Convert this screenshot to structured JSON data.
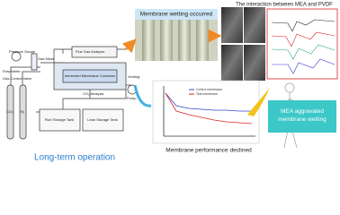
{
  "header": {
    "title": "The interaction between MEA and PVDF"
  },
  "panels": {
    "wetting": "Membrane wetting occurred",
    "performance": "Membrane performance declined",
    "conclusion": "MEA aggravated membrane wetting",
    "operation": "Long-term operation"
  },
  "schematic": {
    "pressure_gauge": "Pressure Gauge",
    "flow_meter": "Flow Meter",
    "gas_valve": "Gas Control Valve",
    "gas_mixer": "Gas Mixer",
    "flue_gas": "Flue Gas Analyzer",
    "contactor": "Immersed Membrane Contactor",
    "co2_analysis": "CO₂ Analysis",
    "venting": "Venting",
    "pump": "Pump",
    "rich_tank": "Rich Storage Tank",
    "lean_tank": "Lean Storage Tank",
    "co2": "CO₂",
    "n2": "N₂"
  },
  "legend": {
    "control": "Control membrane",
    "test": "Test membrane"
  }
}
